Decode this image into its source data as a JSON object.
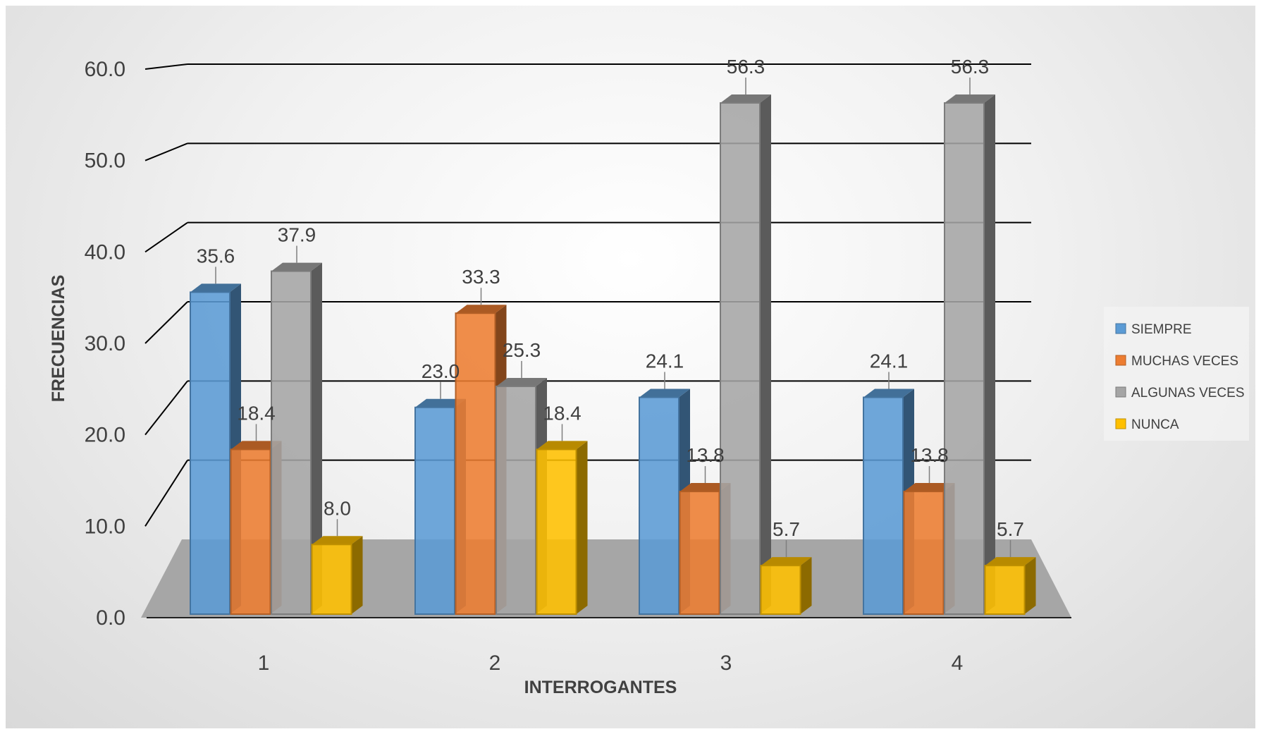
{
  "chart_data": {
    "type": "bar",
    "title": "",
    "xlabel": "INTERROGANTES",
    "ylabel": "FRECUENCIAS",
    "categories": [
      "1",
      "2",
      "3",
      "4"
    ],
    "ylim": [
      0,
      60
    ],
    "yticks": [
      "0.0",
      "10.0",
      "20.0",
      "30.0",
      "40.0",
      "50.0",
      "60.0"
    ],
    "grid": true,
    "legend_position": "right",
    "series": [
      {
        "name": "SIEMPRE",
        "color": "#5B9BD5",
        "values": [
          35.6,
          23.0,
          24.1,
          24.1
        ],
        "labels": [
          "35.6",
          "23.0",
          "24.1",
          "24.1"
        ]
      },
      {
        "name": "MUCHAS VECES",
        "color": "#ED7D31",
        "values": [
          18.4,
          33.3,
          13.8,
          13.8
        ],
        "labels": [
          "18.4",
          "33.3",
          "13.8",
          "13.8"
        ]
      },
      {
        "name": "ALGUNAS VECES",
        "color": "#A5A5A5",
        "values": [
          37.9,
          25.3,
          56.3,
          56.3
        ],
        "labels": [
          "37.9",
          "25.3",
          "56.3",
          "56.3"
        ]
      },
      {
        "name": "NUNCA",
        "color": "#FFC000",
        "values": [
          8.0,
          18.4,
          5.7,
          5.7
        ],
        "labels": [
          "8.0",
          "18.4",
          "5.7",
          "5.7"
        ]
      }
    ]
  }
}
